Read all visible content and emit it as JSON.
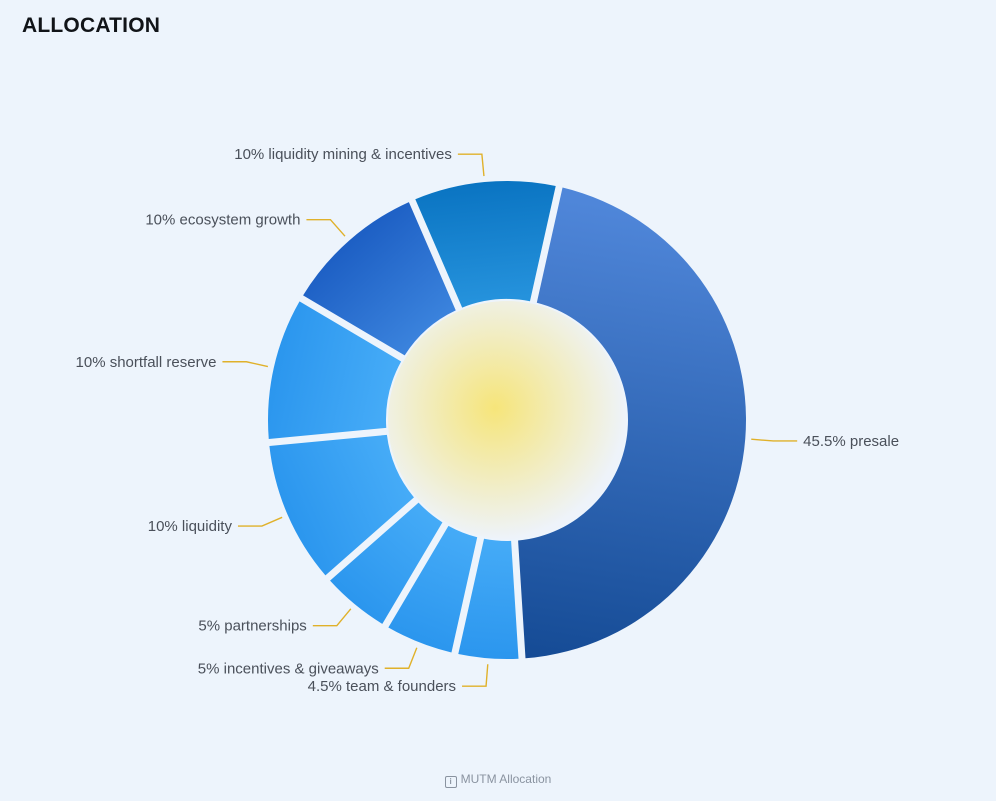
{
  "header": {
    "title": "ALLOCATION"
  },
  "footer": {
    "caption": "MUTM Allocation",
    "icon": "info-icon"
  },
  "chart_data": {
    "type": "pie",
    "variant": "donut",
    "title": "",
    "slices": [
      {
        "label": "45.5% presale",
        "value": 45.5,
        "color_start": "#4f86d9",
        "color_end": "#144a94"
      },
      {
        "label": "4.5% team & founders",
        "value": 4.5,
        "color_start": "#2b96ee",
        "color_end": "#45abf7"
      },
      {
        "label": "5% incentives & giveaways",
        "value": 5,
        "color_start": "#2b96ee",
        "color_end": "#45abf7"
      },
      {
        "label": "5% partnerships",
        "value": 5,
        "color_start": "#2b96ee",
        "color_end": "#45abf7"
      },
      {
        "label": "10% liquidity",
        "value": 10,
        "color_start": "#2b96ee",
        "color_end": "#45abf7"
      },
      {
        "label": "10% shortfall reserve",
        "value": 10,
        "color_start": "#2b96ee",
        "color_end": "#45abf7"
      },
      {
        "label": "10% ecosystem growth",
        "value": 10,
        "color_start": "#1d5fc4",
        "color_end": "#3a82dc"
      },
      {
        "label": "10% liquidity mining & incentives",
        "value": 10,
        "color_start": "#0a74c2",
        "color_end": "#2592dc"
      }
    ],
    "leader_line_color": "#e0b12a",
    "center_glow_color": "#f6e57a",
    "label_color": "#4a505a",
    "legend": "none"
  }
}
